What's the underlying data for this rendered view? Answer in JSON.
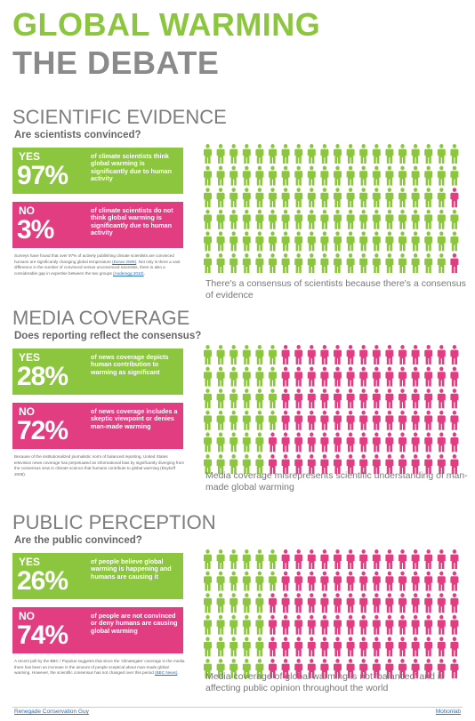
{
  "title": {
    "line1": "GLOBAL WARMING",
    "line2": "THE DEBATE"
  },
  "colors": {
    "yes": "#8cc63f",
    "no": "#e23d80",
    "heading": "#7d7d7d",
    "title_grey": "#8a8a8a"
  },
  "person_icon": "person-icon",
  "sections": [
    {
      "heading": "SCIENTIFIC EVIDENCE",
      "question": "Are scientists convinced?",
      "yes": {
        "label": "YES",
        "percent": "97%",
        "text": "of climate scientists think global warming is significantly due to human activity"
      },
      "no": {
        "label": "NO",
        "percent": "3%",
        "text": "of climate scientists do not think global warming is significantly due to human activity"
      },
      "note": {
        "text": "Surveys have found that over 97% of actively publishing climate scientists are convinced humans are significantly changing global temperature",
        "link1": "(Doran 2009)",
        "text2": ". Not only is there a vast difference in the number of convinced versus unconvinced scientists, there is also a considerable gap in expertise between the two groups",
        "link2": "(Anderegg 2010)",
        "text3": "."
      },
      "caption": "There's a consensus of scientists because there's a consensus of evidence",
      "people": {
        "rows": 6,
        "cols": 20,
        "yes_cols": 19,
        "no_last_col_rows": [
          3,
          6
        ]
      }
    },
    {
      "heading": "MEDIA COVERAGE",
      "question": "Does reporting reflect the consensus?",
      "yes": {
        "label": "YES",
        "percent": "28%",
        "text": "of news coverage depicts human contribution to warming as significant"
      },
      "no": {
        "label": "NO",
        "percent": "72%",
        "text": "of news coverage includes a skeptic viewpoint or denies man-made warming"
      },
      "note": {
        "text": "Because of the institutionalized journalistic norm of balanced reporting, United States television news coverage has perpetuated an informational bias by significantly diverging from the consensus view in climate science that humans contribute to global warming (Boykoff 2008).",
        "link1": "",
        "text2": "",
        "link2": "",
        "text3": ""
      },
      "caption": "Media coverage misrepresents scientific understanding of man-made global warming",
      "people": {
        "rows": 6,
        "cols": 20,
        "yes_cols": 5.6
      }
    },
    {
      "heading": "PUBLIC PERCEPTION",
      "question": "Are the public convinced?",
      "yes": {
        "label": "YES",
        "percent": "26%",
        "text": "of people believe global warming is happening and humans are causing it"
      },
      "no": {
        "label": "NO",
        "percent": "74%",
        "text": "of people are not convinced or deny humans are causing global warming"
      },
      "note": {
        "text": "A recent poll by the BBC / Populus suggests that since the 'climategate' coverage in the media there has been an increase in the amount of people sceptical about man-made global warming. However, the scientific consensus has not changed over this period",
        "link1": "(BBC News)",
        "text2": ".",
        "link2": "",
        "text3": ""
      },
      "caption": "Media coverage of global warming is not 'balanced' and is affecting public opinion throughout the world",
      "people": {
        "rows": 6,
        "cols": 20,
        "yes_cols": 5.2
      }
    }
  ],
  "footer": {
    "left": "Renegade Conservation Guy",
    "right": "Motionlab"
  }
}
